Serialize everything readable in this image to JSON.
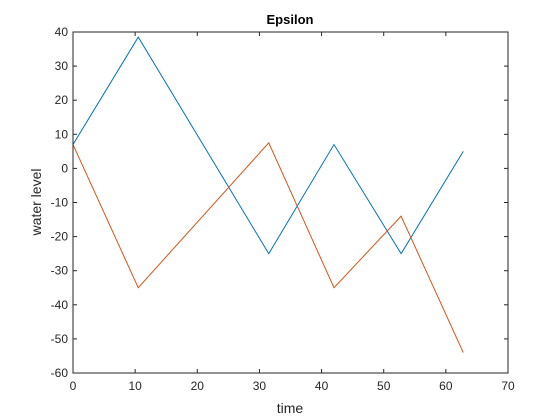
{
  "chart_data": {
    "type": "line",
    "title": "Epsilon",
    "xlabel": "time",
    "ylabel": "water level",
    "xlim": [
      0,
      70
    ],
    "ylim": [
      -60,
      40
    ],
    "xticks": [
      0,
      10,
      20,
      30,
      40,
      50,
      60,
      70
    ],
    "yticks": [
      40,
      30,
      20,
      10,
      0,
      -10,
      -20,
      -30,
      -40,
      -50,
      -60
    ],
    "grid": false,
    "box": true,
    "series": [
      {
        "color": "#0072BD",
        "x": [
          0,
          10.5,
          31.5,
          42,
          52.8,
          62.8
        ],
        "y": [
          7,
          38.5,
          -25,
          7,
          -25,
          5
        ]
      },
      {
        "color": "#D95319",
        "x": [
          0,
          10.5,
          31.5,
          42,
          52.8,
          62.8
        ],
        "y": [
          7,
          -35,
          7.5,
          -35,
          -14,
          -54
        ]
      }
    ]
  }
}
